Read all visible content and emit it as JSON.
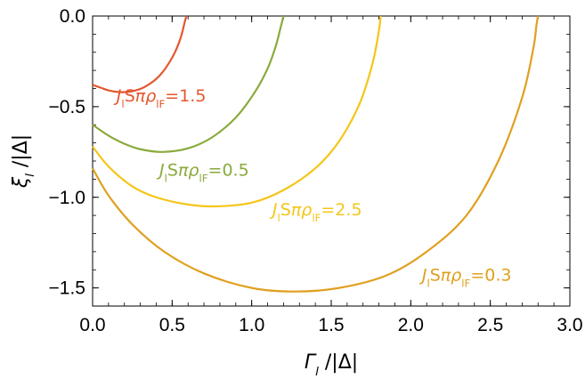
{
  "chart_data": {
    "type": "line",
    "title": "",
    "xlabel": "Γ_l /|Δ|",
    "ylabel": "ξ_l /|Δ|",
    "xlim": [
      0.0,
      3.0
    ],
    "ylim": [
      -1.6,
      0.0
    ],
    "x_ticks": [
      "0.0",
      "0.5",
      "1.0",
      "1.5",
      "2.0",
      "2.5",
      "3.0"
    ],
    "y_ticks": [
      "0.0",
      "-0.5",
      "-1.0",
      "-1.5"
    ],
    "grid": false,
    "series": [
      {
        "name": "JlSπρlF=1.5",
        "color": "#E4572E",
        "points": [
          [
            0.0,
            -0.38
          ],
          [
            0.05,
            -0.395
          ],
          [
            0.1,
            -0.41
          ],
          [
            0.17,
            -0.42
          ],
          [
            0.25,
            -0.415
          ],
          [
            0.33,
            -0.39
          ],
          [
            0.42,
            -0.33
          ],
          [
            0.5,
            -0.23
          ],
          [
            0.55,
            -0.13
          ],
          [
            0.58,
            -0.03
          ],
          [
            0.59,
            0.0
          ]
        ]
      },
      {
        "name": "JlSπρlF=0.5",
        "color": "#8AAA3C",
        "points": [
          [
            0.0,
            -0.6
          ],
          [
            0.1,
            -0.66
          ],
          [
            0.2,
            -0.705
          ],
          [
            0.3,
            -0.735
          ],
          [
            0.44,
            -0.75
          ],
          [
            0.6,
            -0.73
          ],
          [
            0.75,
            -0.67
          ],
          [
            0.9,
            -0.56
          ],
          [
            1.02,
            -0.42
          ],
          [
            1.1,
            -0.29
          ],
          [
            1.15,
            -0.17
          ],
          [
            1.18,
            -0.07
          ],
          [
            1.2,
            0.0
          ]
        ]
      },
      {
        "name": "JlSπρlF=2.5",
        "color": "#F5C518",
        "points": [
          [
            0.0,
            -0.72
          ],
          [
            0.1,
            -0.83
          ],
          [
            0.25,
            -0.94
          ],
          [
            0.4,
            -1.0
          ],
          [
            0.6,
            -1.04
          ],
          [
            0.78,
            -1.05
          ],
          [
            1.0,
            -1.03
          ],
          [
            1.2,
            -0.96
          ],
          [
            1.4,
            -0.84
          ],
          [
            1.55,
            -0.69
          ],
          [
            1.68,
            -0.48
          ],
          [
            1.76,
            -0.26
          ],
          [
            1.8,
            -0.08
          ],
          [
            1.81,
            0.0
          ]
        ]
      },
      {
        "name": "JlSπρlF=0.3",
        "color": "#E0A020",
        "points": [
          [
            0.0,
            -0.84
          ],
          [
            0.1,
            -0.99
          ],
          [
            0.25,
            -1.15
          ],
          [
            0.45,
            -1.3
          ],
          [
            0.7,
            -1.42
          ],
          [
            1.0,
            -1.5
          ],
          [
            1.27,
            -1.52
          ],
          [
            1.55,
            -1.5
          ],
          [
            1.85,
            -1.43
          ],
          [
            2.1,
            -1.3
          ],
          [
            2.35,
            -1.1
          ],
          [
            2.55,
            -0.8
          ],
          [
            2.7,
            -0.45
          ],
          [
            2.77,
            -0.18
          ],
          [
            2.79,
            -0.05
          ],
          [
            2.8,
            0.0
          ]
        ]
      }
    ],
    "annotations": [
      {
        "series": 0,
        "parts": [
          "J",
          "l",
          "S",
          "πρ",
          "lF",
          "=1.5"
        ],
        "x": 0.15,
        "y": -0.47
      },
      {
        "series": 1,
        "parts": [
          "J",
          "l",
          "S",
          "πρ",
          "lF",
          "=0.5"
        ],
        "x": 0.42,
        "y": -0.88
      },
      {
        "series": 2,
        "parts": [
          "J",
          "l",
          "S",
          "πρ",
          "lF",
          "=2.5"
        ],
        "x": 1.13,
        "y": -1.1
      },
      {
        "series": 3,
        "parts": [
          "J",
          "l",
          "S",
          "πρ",
          "lF",
          "=0.3"
        ],
        "x": 2.07,
        "y": -1.46
      }
    ],
    "xlabel_parts": [
      "Γ",
      "l",
      " /|Δ|"
    ],
    "ylabel_parts": [
      "ξ",
      "l",
      " /|Δ|"
    ]
  }
}
